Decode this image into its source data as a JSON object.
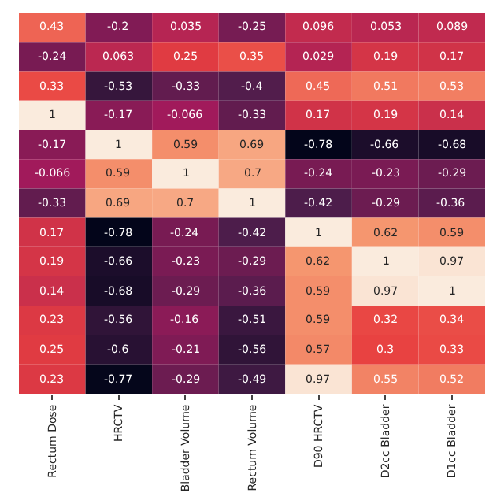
{
  "chart_data": {
    "type": "heatmap",
    "categories": [
      "Rectum Dose",
      "HRCTV",
      "Bladder Volume",
      "Rectum Volume",
      "D90 HRCTV",
      "D2cc Bladder",
      "D1cc Bladder"
    ],
    "y_categories": [
      null,
      null,
      null,
      null,
      null,
      null,
      null,
      null,
      null,
      null,
      null,
      null,
      null
    ],
    "tick_labels": "x",
    "data_labels": true,
    "cells": [
      [
        0.43,
        -0.2,
        0.035,
        -0.25,
        0.096,
        0.053,
        0.089
      ],
      [
        -0.24,
        0.063,
        0.25,
        0.35,
        0.029,
        0.19,
        0.17
      ],
      [
        0.33,
        -0.53,
        -0.33,
        -0.4,
        0.45,
        0.51,
        0.53
      ],
      [
        1,
        -0.17,
        -0.066,
        -0.33,
        0.17,
        0.19,
        0.14
      ],
      [
        -0.17,
        1,
        0.59,
        0.69,
        -0.78,
        -0.66,
        -0.68
      ],
      [
        -0.066,
        0.59,
        1,
        0.7,
        -0.24,
        -0.23,
        -0.29
      ],
      [
        -0.33,
        0.69,
        0.7,
        1,
        -0.42,
        -0.29,
        -0.36
      ],
      [
        0.17,
        -0.78,
        -0.24,
        -0.42,
        1,
        0.62,
        0.59
      ],
      [
        0.19,
        -0.66,
        -0.23,
        -0.29,
        0.62,
        1,
        0.97
      ],
      [
        0.14,
        -0.68,
        -0.29,
        -0.36,
        0.59,
        0.97,
        1
      ],
      [
        0.23,
        -0.56,
        -0.16,
        -0.51,
        0.59,
        0.32,
        0.34
      ],
      [
        0.25,
        -0.6,
        -0.21,
        -0.56,
        0.57,
        0.3,
        0.33
      ],
      [
        0.23,
        -0.77,
        -0.29,
        -0.49,
        0.97,
        0.55,
        0.52
      ]
    ]
  }
}
